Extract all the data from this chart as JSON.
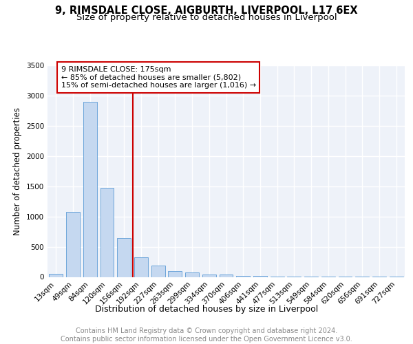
{
  "title": "9, RIMSDALE CLOSE, AIGBURTH, LIVERPOOL, L17 6EX",
  "subtitle": "Size of property relative to detached houses in Liverpool",
  "xlabel": "Distribution of detached houses by size in Liverpool",
  "ylabel": "Number of detached properties",
  "categories": [
    "13sqm",
    "49sqm",
    "84sqm",
    "120sqm",
    "156sqm",
    "192sqm",
    "227sqm",
    "263sqm",
    "299sqm",
    "334sqm",
    "370sqm",
    "406sqm",
    "441sqm",
    "477sqm",
    "513sqm",
    "549sqm",
    "584sqm",
    "620sqm",
    "656sqm",
    "691sqm",
    "727sqm"
  ],
  "values": [
    50,
    1080,
    2900,
    1470,
    640,
    330,
    185,
    95,
    70,
    45,
    35,
    20,
    15,
    10,
    8,
    5,
    4,
    3,
    2,
    1,
    1
  ],
  "bar_color": "#c5d8f0",
  "bar_edge_color": "#5b9bd5",
  "vline_x": 4.5,
  "vline_color": "#cc0000",
  "annotation_title": "9 RIMSDALE CLOSE: 175sqm",
  "annotation_line1": "← 85% of detached houses are smaller (5,802)",
  "annotation_line2": "15% of semi-detached houses are larger (1,016) →",
  "annotation_box_color": "#cc0000",
  "ylim": [
    0,
    3500
  ],
  "yticks": [
    0,
    500,
    1000,
    1500,
    2000,
    2500,
    3000,
    3500
  ],
  "footer1": "Contains HM Land Registry data © Crown copyright and database right 2024.",
  "footer2": "Contains public sector information licensed under the Open Government Licence v3.0.",
  "bg_color": "#eef2f9",
  "grid_color": "#ffffff",
  "title_fontsize": 10.5,
  "subtitle_fontsize": 9.5,
  "xlabel_fontsize": 9,
  "ylabel_fontsize": 8.5,
  "tick_fontsize": 7.5,
  "annotation_fontsize": 8,
  "footer_fontsize": 7
}
